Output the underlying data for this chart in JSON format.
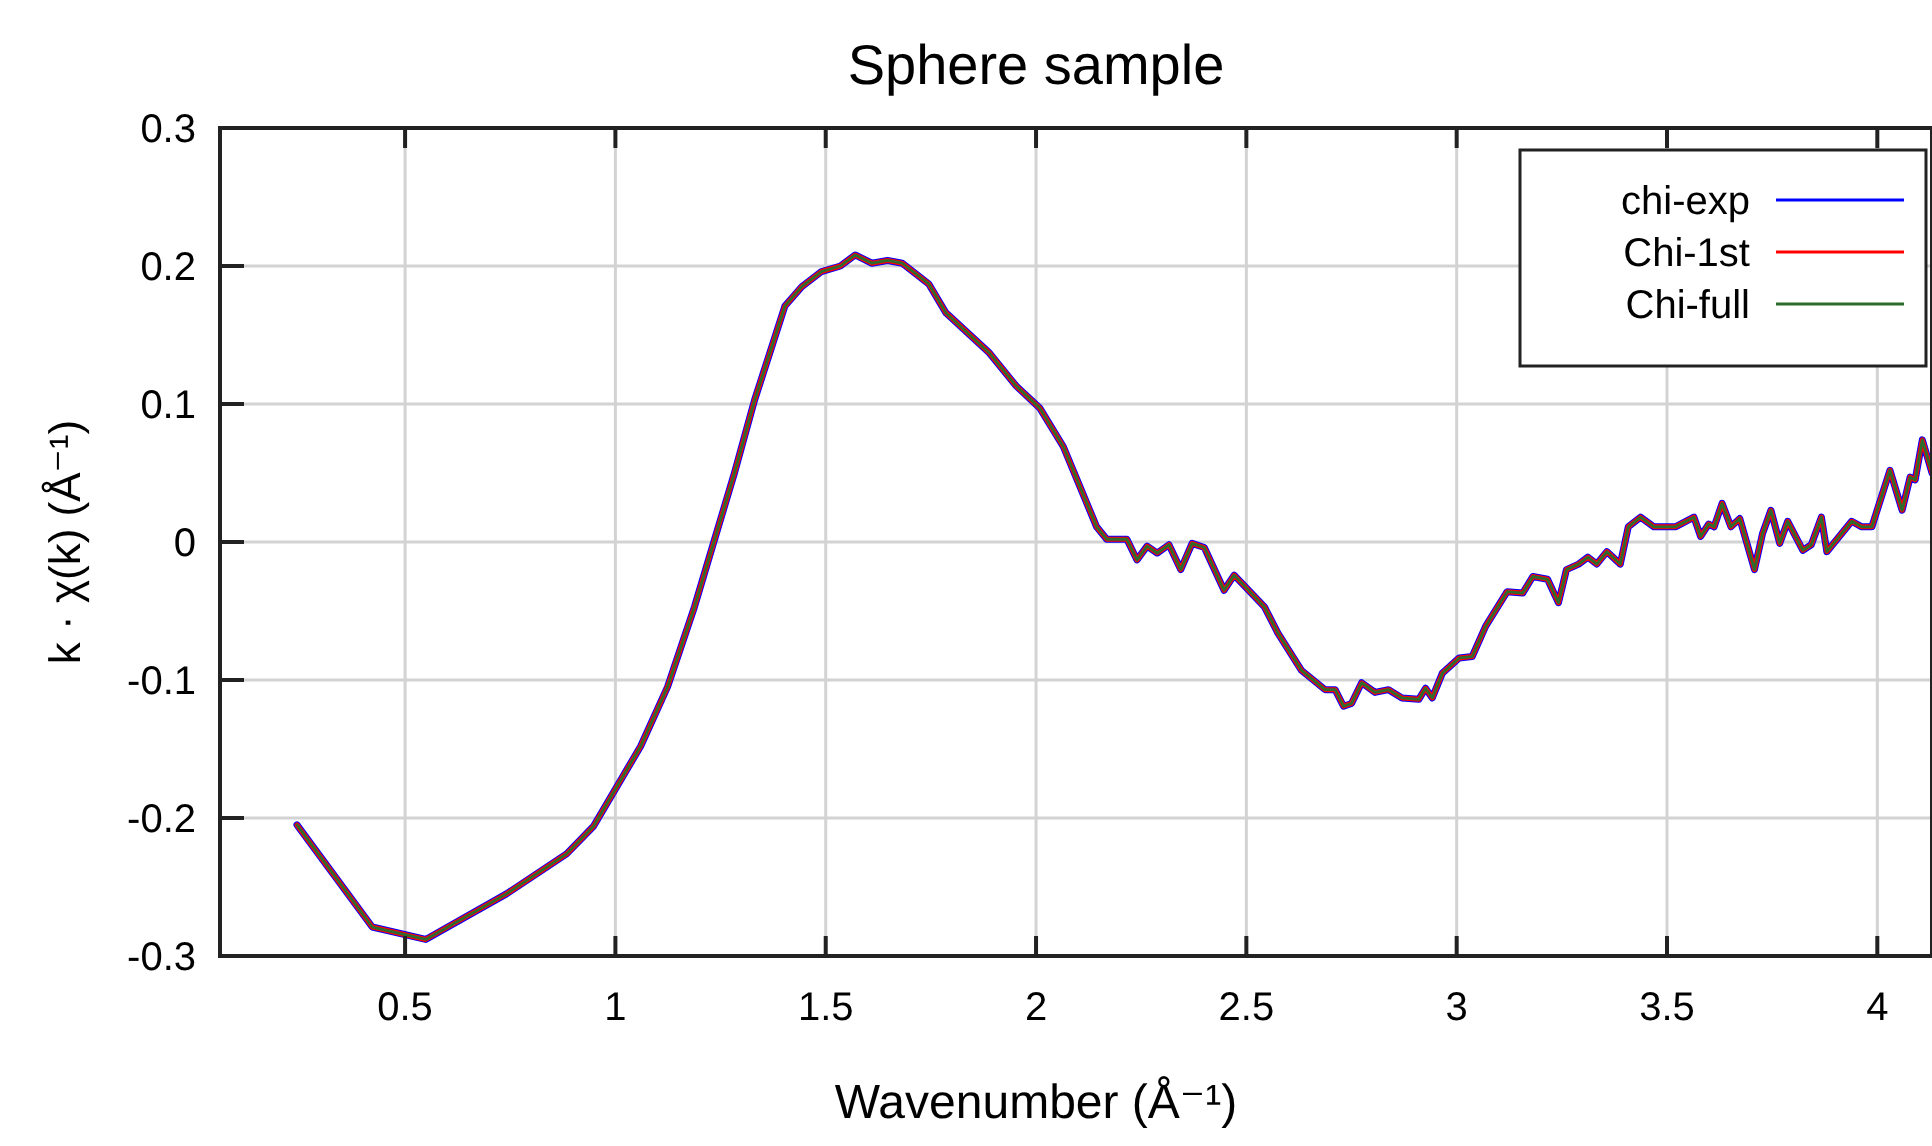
{
  "chart_data": {
    "type": "line",
    "title": "Sphere sample",
    "xlabel": "Wavenumber    (Å⁻¹)",
    "ylabel": "k · χ(k)    (Å⁻¹)",
    "x": [
      0.243,
      0.422,
      0.549,
      0.741,
      0.884,
      0.948,
      1.06,
      1.124,
      1.188,
      1.235,
      1.283,
      1.331,
      1.403,
      1.443,
      1.49,
      1.535,
      1.57,
      1.61,
      1.647,
      1.682,
      1.745,
      1.786,
      1.889,
      1.953,
      2.009,
      2.065,
      2.144,
      2.168,
      2.216,
      2.24,
      2.264,
      2.288,
      2.316,
      2.344,
      2.371,
      2.4,
      2.447,
      2.471,
      2.543,
      2.575,
      2.631,
      2.687,
      2.711,
      2.731,
      2.75,
      2.774,
      2.806,
      2.838,
      2.87,
      2.91,
      2.926,
      2.942,
      2.966,
      3.006,
      3.037,
      3.069,
      3.12,
      3.157,
      3.181,
      3.216,
      3.242,
      3.261,
      3.29,
      3.312,
      3.333,
      3.357,
      3.389,
      3.408,
      3.437,
      3.469,
      3.52,
      3.564,
      3.58,
      3.599,
      3.612,
      3.631,
      3.652,
      3.673,
      3.708,
      3.727,
      3.747,
      3.768,
      3.787,
      3.823,
      3.843,
      3.867,
      3.88,
      3.939,
      3.963,
      3.987,
      4.03,
      4.059,
      4.078,
      4.09,
      4.107,
      4.13
    ],
    "series": [
      {
        "name": "chi-exp",
        "color": "#0000ff",
        "values": [
          -0.205,
          -0.279,
          -0.288,
          -0.255,
          -0.226,
          -0.206,
          -0.148,
          -0.105,
          -0.047,
          0.001,
          0.05,
          0.103,
          0.171,
          0.185,
          0.196,
          0.2,
          0.208,
          0.202,
          0.204,
          0.202,
          0.187,
          0.166,
          0.137,
          0.113,
          0.097,
          0.069,
          0.011,
          0.002,
          0.002,
          -0.013,
          -0.003,
          -0.008,
          -0.002,
          -0.02,
          -0.001,
          -0.004,
          -0.035,
          -0.024,
          -0.047,
          -0.066,
          -0.093,
          -0.107,
          -0.107,
          -0.119,
          -0.117,
          -0.102,
          -0.109,
          -0.107,
          -0.113,
          -0.114,
          -0.106,
          -0.113,
          -0.095,
          -0.084,
          -0.083,
          -0.061,
          -0.036,
          -0.037,
          -0.025,
          -0.027,
          -0.044,
          -0.02,
          -0.016,
          -0.011,
          -0.016,
          -0.007,
          -0.016,
          0.011,
          0.018,
          0.011,
          0.011,
          0.018,
          0.004,
          0.013,
          0.011,
          0.028,
          0.011,
          0.017,
          -0.02,
          0.006,
          0.023,
          -0.001,
          0.015,
          -0.006,
          -0.002,
          0.018,
          -0.007,
          0.015,
          0.011,
          0.011,
          0.052,
          0.023,
          0.047,
          0.045,
          0.074,
          0.05
        ]
      },
      {
        "name": "Chi-1st",
        "color": "#ff0000",
        "values": [
          -0.205,
          -0.279,
          -0.288,
          -0.255,
          -0.226,
          -0.206,
          -0.148,
          -0.105,
          -0.047,
          0.001,
          0.05,
          0.103,
          0.171,
          0.185,
          0.196,
          0.2,
          0.208,
          0.202,
          0.204,
          0.202,
          0.187,
          0.166,
          0.137,
          0.113,
          0.097,
          0.069,
          0.011,
          0.002,
          0.002,
          -0.013,
          -0.003,
          -0.008,
          -0.002,
          -0.02,
          -0.001,
          -0.004,
          -0.035,
          -0.024,
          -0.047,
          -0.066,
          -0.093,
          -0.107,
          -0.107,
          -0.119,
          -0.117,
          -0.102,
          -0.109,
          -0.107,
          -0.113,
          -0.114,
          -0.106,
          -0.113,
          -0.095,
          -0.084,
          -0.083,
          -0.061,
          -0.036,
          -0.037,
          -0.025,
          -0.027,
          -0.044,
          -0.02,
          -0.016,
          -0.011,
          -0.016,
          -0.007,
          -0.016,
          0.011,
          0.018,
          0.011,
          0.011,
          0.018,
          0.004,
          0.013,
          0.011,
          0.028,
          0.011,
          0.017,
          -0.02,
          0.006,
          0.023,
          -0.001,
          0.015,
          -0.006,
          -0.002,
          0.018,
          -0.007,
          0.015,
          0.011,
          0.011,
          0.052,
          0.023,
          0.047,
          0.045,
          0.074,
          0.05
        ]
      },
      {
        "name": "Chi-full",
        "color": "#2e6b2e",
        "values": [
          -0.205,
          -0.279,
          -0.288,
          -0.255,
          -0.226,
          -0.206,
          -0.148,
          -0.105,
          -0.047,
          0.001,
          0.05,
          0.103,
          0.171,
          0.185,
          0.196,
          0.2,
          0.208,
          0.202,
          0.204,
          0.202,
          0.187,
          0.166,
          0.137,
          0.113,
          0.097,
          0.069,
          0.011,
          0.002,
          0.002,
          -0.013,
          -0.003,
          -0.008,
          -0.002,
          -0.02,
          -0.001,
          -0.004,
          -0.035,
          -0.024,
          -0.047,
          -0.066,
          -0.093,
          -0.107,
          -0.107,
          -0.119,
          -0.117,
          -0.102,
          -0.109,
          -0.107,
          -0.113,
          -0.114,
          -0.106,
          -0.113,
          -0.095,
          -0.084,
          -0.083,
          -0.061,
          -0.036,
          -0.037,
          -0.025,
          -0.027,
          -0.044,
          -0.02,
          -0.016,
          -0.011,
          -0.016,
          -0.007,
          -0.016,
          0.011,
          0.018,
          0.011,
          0.011,
          0.018,
          0.004,
          0.013,
          0.011,
          0.028,
          0.011,
          0.017,
          -0.02,
          0.006,
          0.023,
          -0.001,
          0.015,
          -0.006,
          -0.002,
          0.018,
          -0.007,
          0.015,
          0.011,
          0.011,
          0.052,
          0.023,
          0.047,
          0.045,
          0.074,
          0.05
        ]
      }
    ],
    "xlim": [
      0.06,
      4.13
    ],
    "xticks": [
      0.5,
      1,
      1.5,
      2,
      2.5,
      3,
      3.5,
      4
    ],
    "ylim": [
      -0.3,
      0.3
    ],
    "yticks": [
      -0.3,
      -0.2,
      -0.1,
      0,
      0.1,
      0.2,
      0.3
    ],
    "grid": true,
    "legend": "top right",
    "marker": "none",
    "line_style": "solid"
  }
}
